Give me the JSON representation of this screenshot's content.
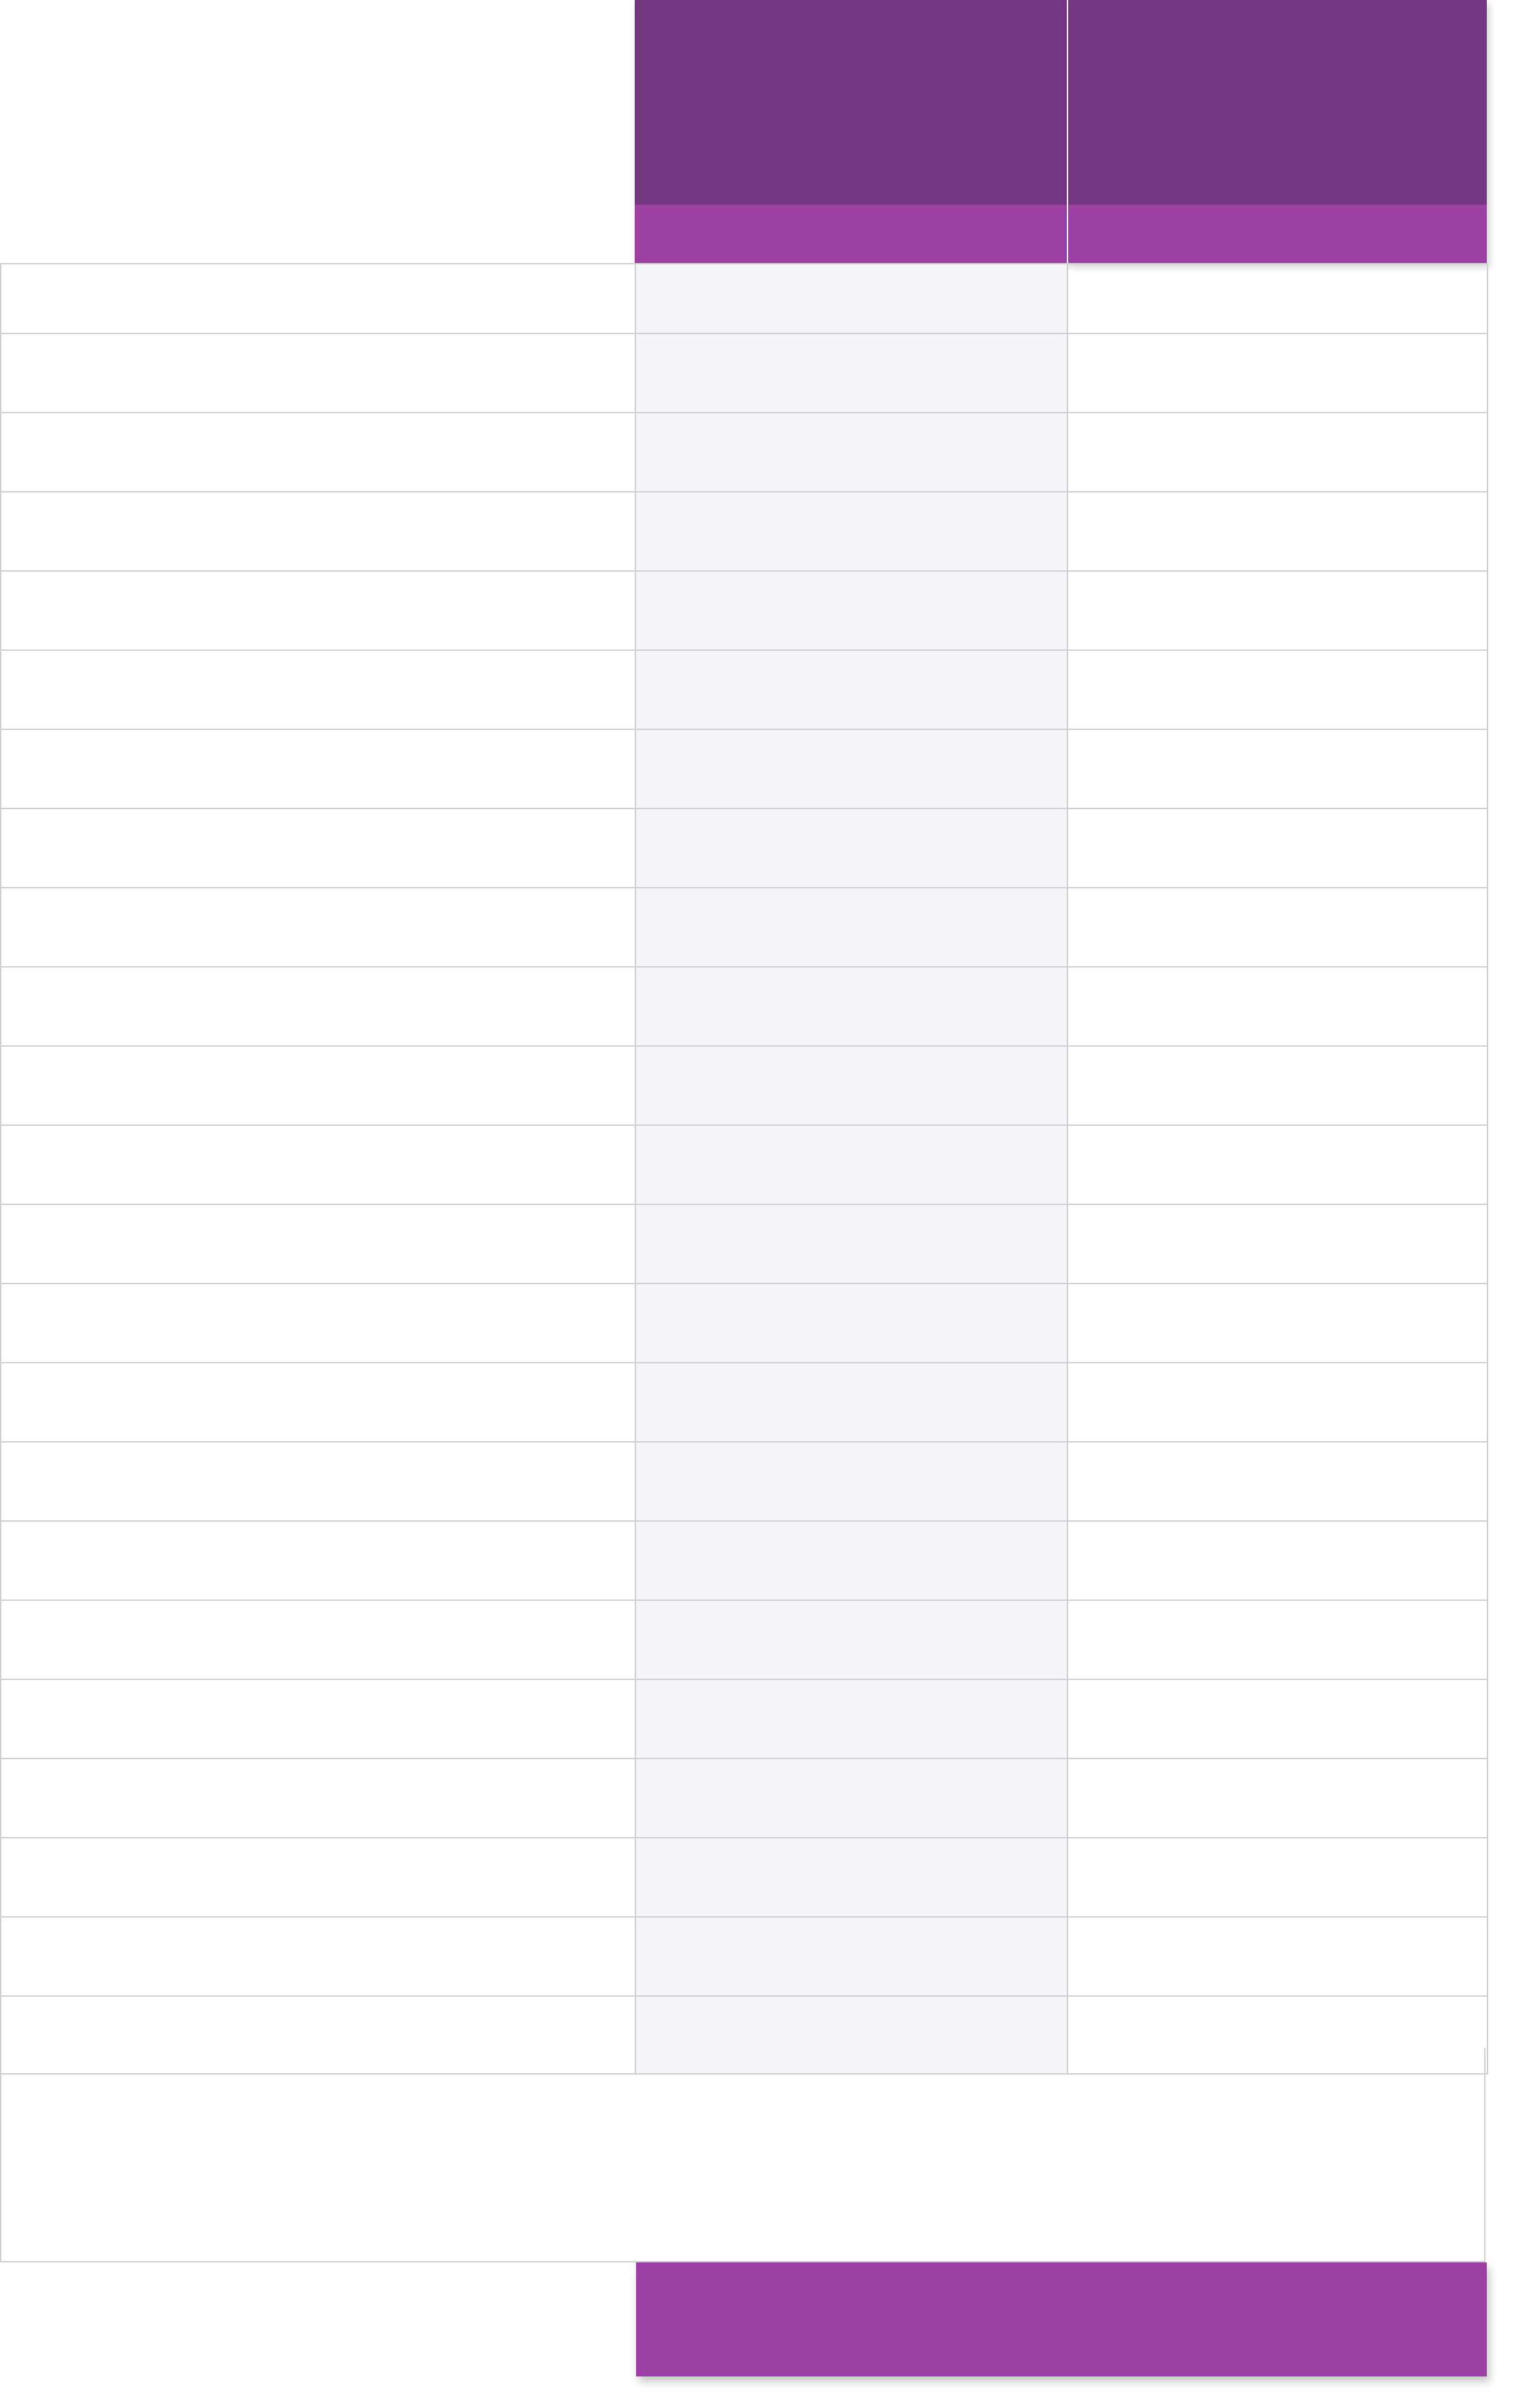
{
  "colors": {
    "header_dark": "#743581",
    "header_band": "#9c40a4",
    "cta": "#9c40a4",
    "stripe": "#f5f4f8",
    "grid": "#cfcfd4"
  },
  "plans": [
    {
      "title": "",
      "band": ""
    },
    {
      "title": "",
      "band": ""
    }
  ],
  "rows": [
    {
      "feature": "",
      "a": "",
      "b": ""
    },
    {
      "feature": "",
      "a": "",
      "b": ""
    },
    {
      "feature": "",
      "a": "",
      "b": ""
    },
    {
      "feature": "",
      "a": "",
      "b": ""
    },
    {
      "feature": "",
      "a": "",
      "b": ""
    },
    {
      "feature": "",
      "a": "",
      "b": ""
    },
    {
      "feature": "",
      "a": "",
      "b": ""
    },
    {
      "feature": "",
      "a": "",
      "b": ""
    },
    {
      "feature": "",
      "a": "",
      "b": ""
    },
    {
      "feature": "",
      "a": "",
      "b": ""
    },
    {
      "feature": "",
      "a": "",
      "b": ""
    },
    {
      "feature": "",
      "a": "",
      "b": ""
    },
    {
      "feature": "",
      "a": "",
      "b": ""
    },
    {
      "feature": "",
      "a": "",
      "b": ""
    },
    {
      "feature": "",
      "a": "",
      "b": ""
    },
    {
      "feature": "",
      "a": "",
      "b": ""
    },
    {
      "feature": "",
      "a": "",
      "b": ""
    },
    {
      "feature": "",
      "a": "",
      "b": ""
    },
    {
      "feature": "",
      "a": "",
      "b": ""
    },
    {
      "feature": "",
      "a": "",
      "b": ""
    },
    {
      "feature": "",
      "a": "",
      "b": ""
    },
    {
      "feature": "",
      "a": "",
      "b": ""
    },
    {
      "feature": "",
      "a": "",
      "b": ""
    }
  ],
  "footnote": "",
  "cta": {
    "label": ""
  }
}
